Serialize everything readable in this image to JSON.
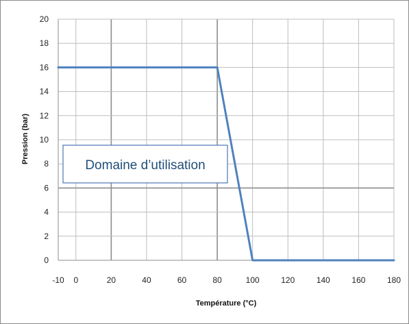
{
  "chart_data": {
    "type": "line",
    "title": "",
    "xlabel": "Température (°C)",
    "ylabel": "Pression (bar)",
    "xlim": [
      -10,
      180
    ],
    "ylim": [
      0,
      20
    ],
    "xticks": [
      -10,
      0,
      20,
      40,
      60,
      80,
      100,
      120,
      140,
      160,
      180
    ],
    "yticks": [
      0,
      2,
      4,
      6,
      8,
      10,
      12,
      14,
      16,
      18,
      20
    ],
    "grid": true,
    "legend": "none",
    "series": [
      {
        "x": [
          -10,
          80,
          100,
          180
        ],
        "y": [
          16,
          16,
          0,
          0
        ],
        "color": "#4f81bd"
      }
    ],
    "annotations": [
      {
        "text": "Domaine d’utilisation"
      }
    ]
  }
}
